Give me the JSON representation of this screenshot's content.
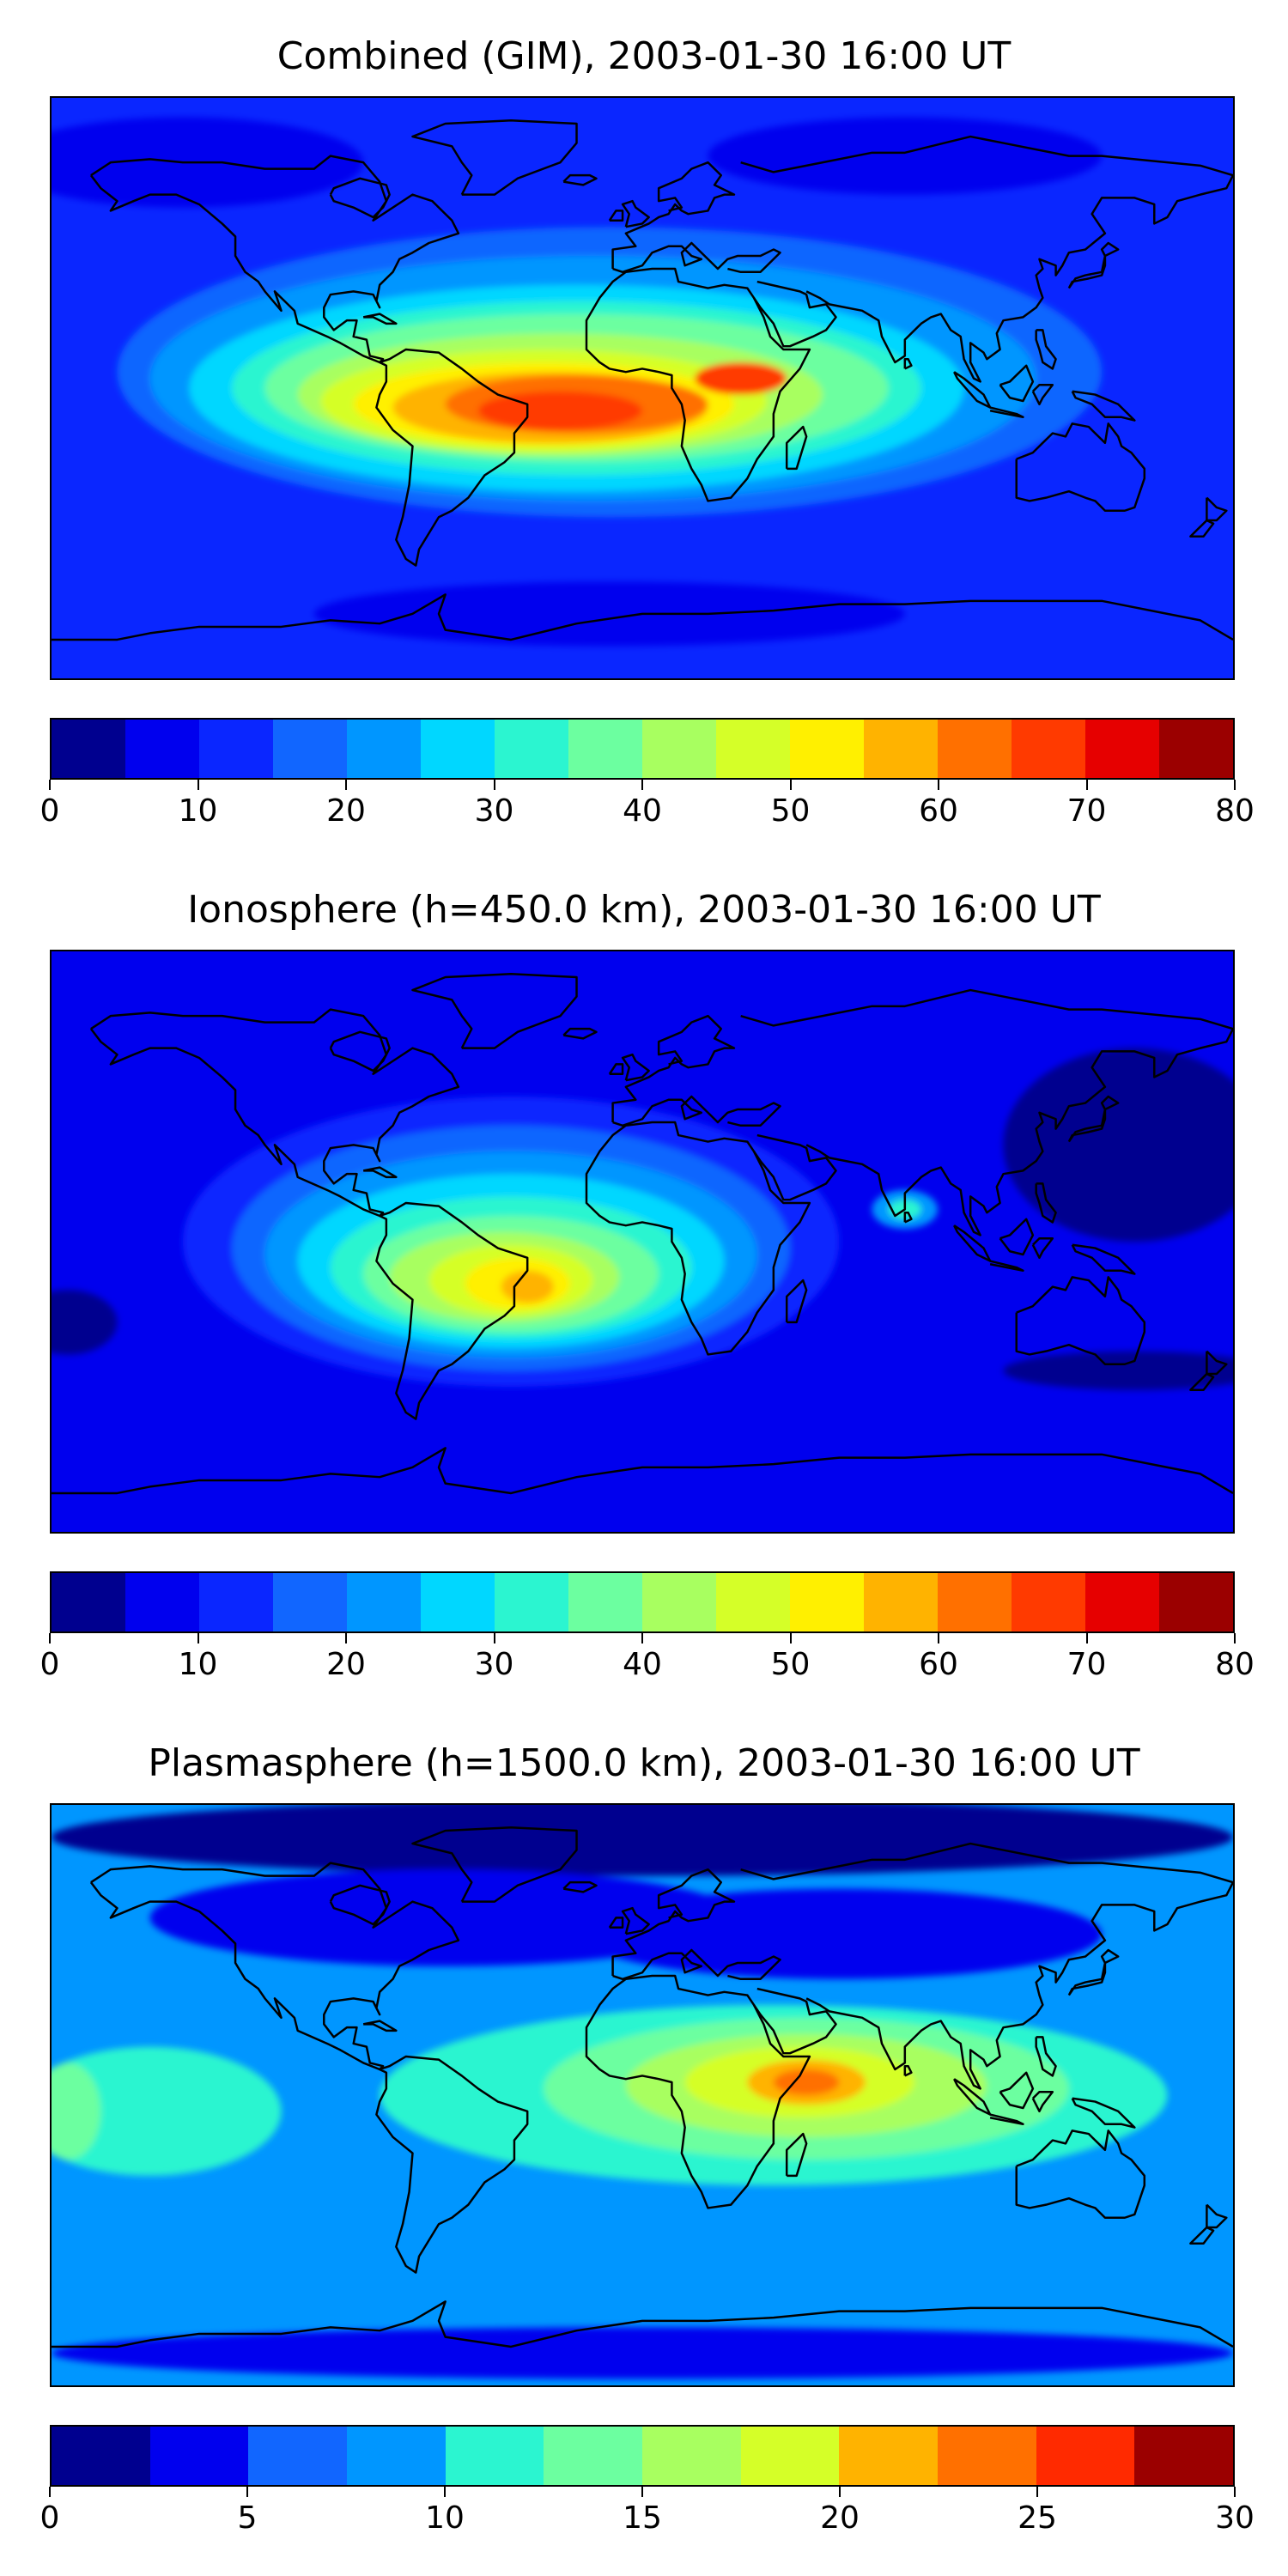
{
  "panels": [
    {
      "title": "Combined (GIM), 2003-01-30 16:00 UT",
      "colorbar": {
        "colors": [
          "#00008f",
          "#0000ee",
          "#0a26ff",
          "#1166ff",
          "#0096ff",
          "#00d7ff",
          "#2bf5d0",
          "#6cffa0",
          "#a8ff60",
          "#d5ff28",
          "#fff000",
          "#ffb300",
          "#ff7000",
          "#ff3a00",
          "#e60000",
          "#9b0000"
        ],
        "tick_labels": [
          "0",
          "10",
          "20",
          "30",
          "40",
          "50",
          "60",
          "70",
          "80"
        ]
      },
      "field": {
        "background": "#0a26ff",
        "blobs": [
          {
            "lon": -140,
            "lat": 70,
            "rx": 55,
            "ry": 14,
            "color": "#0000ee"
          },
          {
            "lon": 80,
            "lat": 72,
            "rx": 60,
            "ry": 12,
            "color": "#0000ee"
          },
          {
            "lon": -10,
            "lat": -70,
            "rx": 90,
            "ry": 10,
            "color": "#0000ee"
          },
          {
            "lon": -10,
            "lat": 5,
            "rx": 150,
            "ry": 45,
            "color": "#1166ff"
          },
          {
            "lon": -15,
            "lat": 3,
            "rx": 135,
            "ry": 38,
            "color": "#0096ff"
          },
          {
            "lon": -20,
            "lat": 0,
            "rx": 118,
            "ry": 32,
            "color": "#00d7ff"
          },
          {
            "lon": -20,
            "lat": 0,
            "rx": 105,
            "ry": 27,
            "color": "#2bf5d0"
          },
          {
            "lon": -20,
            "lat": 0,
            "rx": 95,
            "ry": 23,
            "color": "#6cffa0"
          },
          {
            "lon": -25,
            "lat": -2,
            "rx": 80,
            "ry": 19,
            "color": "#a8ff60"
          },
          {
            "lon": -30,
            "lat": -4,
            "rx": 68,
            "ry": 16,
            "color": "#d5ff28"
          },
          {
            "lon": -30,
            "lat": -5,
            "rx": 58,
            "ry": 13,
            "color": "#fff000"
          },
          {
            "lon": -28,
            "lat": -6,
            "rx": 48,
            "ry": 11,
            "color": "#ffb300"
          },
          {
            "lon": -20,
            "lat": -5,
            "rx": 40,
            "ry": 9,
            "color": "#ff7000"
          },
          {
            "lon": -25,
            "lat": -7,
            "rx": 25,
            "ry": 6,
            "color": "#ff3a00"
          },
          {
            "lon": 30,
            "lat": 3,
            "rx": 14,
            "ry": 5,
            "color": "#ff3a00"
          }
        ]
      }
    },
    {
      "title": "Ionosphere  (h=450.0 km), 2003-01-30 16:00 UT",
      "colorbar": {
        "colors": [
          "#00008f",
          "#0000ee",
          "#0a26ff",
          "#1166ff",
          "#0096ff",
          "#00d7ff",
          "#2bf5d0",
          "#6cffa0",
          "#a8ff60",
          "#d5ff28",
          "#fff000",
          "#ffb300",
          "#ff7000",
          "#ff3a00",
          "#e60000",
          "#9b0000"
        ],
        "tick_labels": [
          "0",
          "10",
          "20",
          "30",
          "40",
          "50",
          "60",
          "70",
          "80"
        ]
      },
      "field": {
        "background": "#0000ee",
        "blobs": [
          {
            "lon": 150,
            "lat": 30,
            "rx": 40,
            "ry": 30,
            "color": "#00008f"
          },
          {
            "lon": -175,
            "lat": -25,
            "rx": 15,
            "ry": 10,
            "color": "#00008f"
          },
          {
            "lon": 150,
            "lat": -40,
            "rx": 40,
            "ry": 6,
            "color": "#00008f"
          },
          {
            "lon": -40,
            "lat": 0,
            "rx": 100,
            "ry": 45,
            "color": "#0a26ff"
          },
          {
            "lon": -40,
            "lat": -2,
            "rx": 85,
            "ry": 38,
            "color": "#1166ff"
          },
          {
            "lon": -40,
            "lat": -4,
            "rx": 75,
            "ry": 32,
            "color": "#0096ff"
          },
          {
            "lon": -40,
            "lat": -6,
            "rx": 65,
            "ry": 27,
            "color": "#00d7ff"
          },
          {
            "lon": -40,
            "lat": -8,
            "rx": 55,
            "ry": 22,
            "color": "#2bf5d0"
          },
          {
            "lon": -40,
            "lat": -10,
            "rx": 45,
            "ry": 18,
            "color": "#6cffa0"
          },
          {
            "lon": -42,
            "lat": -11,
            "rx": 35,
            "ry": 14,
            "color": "#a8ff60"
          },
          {
            "lon": -40,
            "lat": -12,
            "rx": 25,
            "ry": 11,
            "color": "#d5ff28"
          },
          {
            "lon": -38,
            "lat": -13,
            "rx": 16,
            "ry": 8,
            "color": "#fff000"
          },
          {
            "lon": -35,
            "lat": -14,
            "rx": 8,
            "ry": 5,
            "color": "#ffb300"
          },
          {
            "lon": 80,
            "lat": 10,
            "rx": 10,
            "ry": 6,
            "color": "#0096ff"
          },
          {
            "lon": 80,
            "lat": 10,
            "rx": 5,
            "ry": 3,
            "color": "#2bf5d0"
          }
        ]
      }
    },
    {
      "title": "Plasmasphere (h=1500.0 km), 2003-01-30 16:00 UT",
      "colorbar": {
        "colors": [
          "#00008f",
          "#0000ee",
          "#1166ff",
          "#0096ff",
          "#2bf5d0",
          "#6cffa0",
          "#a8ff60",
          "#d5ff28",
          "#ffb300",
          "#ff7000",
          "#ff2a00",
          "#9b0000"
        ],
        "tick_labels": [
          "0",
          "5",
          "10",
          "15",
          "20",
          "25",
          "30"
        ]
      },
      "field": {
        "background": "#0096ff",
        "blobs": [
          {
            "lon": 0,
            "lat": 80,
            "rx": 180,
            "ry": 12,
            "color": "#00008f"
          },
          {
            "lon": 0,
            "lat": -80,
            "rx": 180,
            "ry": 8,
            "color": "#0000ee"
          },
          {
            "lon": -60,
            "lat": 55,
            "rx": 90,
            "ry": 15,
            "color": "#0000ee"
          },
          {
            "lon": 60,
            "lat": 50,
            "rx": 80,
            "ry": 14,
            "color": "#0000ee"
          },
          {
            "lon": 40,
            "lat": 0,
            "rx": 120,
            "ry": 28,
            "color": "#2bf5d0"
          },
          {
            "lon": -150,
            "lat": -5,
            "rx": 40,
            "ry": 20,
            "color": "#2bf5d0"
          },
          {
            "lon": -175,
            "lat": -5,
            "rx": 10,
            "ry": 15,
            "color": "#6cffa0"
          },
          {
            "lon": 50,
            "lat": 2,
            "rx": 80,
            "ry": 22,
            "color": "#6cffa0"
          },
          {
            "lon": 50,
            "lat": 3,
            "rx": 55,
            "ry": 16,
            "color": "#a8ff60"
          },
          {
            "lon": 48,
            "lat": 4,
            "rx": 35,
            "ry": 11,
            "color": "#d5ff28"
          },
          {
            "lon": 50,
            "lat": 4,
            "rx": 18,
            "ry": 7,
            "color": "#ffb300"
          },
          {
            "lon": 50,
            "lat": 4,
            "rx": 10,
            "ry": 4,
            "color": "#ff7000"
          }
        ]
      }
    }
  ]
}
